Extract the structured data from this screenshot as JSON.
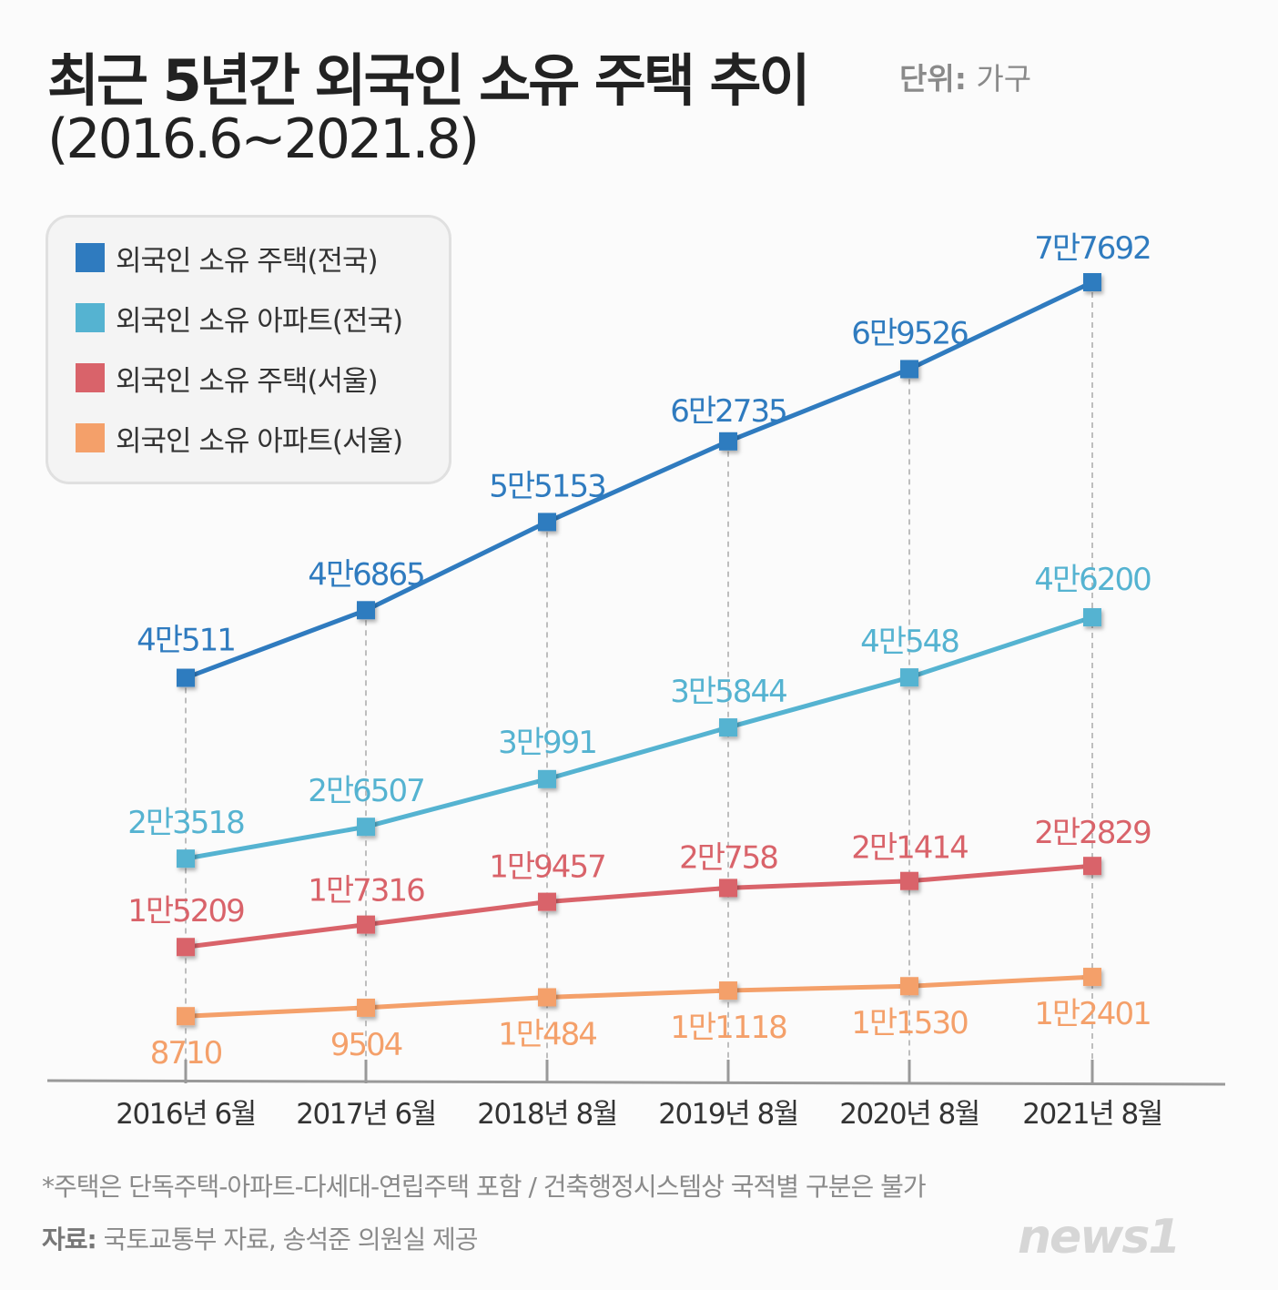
{
  "header": {
    "title_line1": "최근 5년간 외국인 소유 주택 추이",
    "title_line2": "(2016.6~2021.8)",
    "unit_label": "단위:",
    "unit_value": "가구"
  },
  "footer": {
    "footnote": "*주택은 단독주택-아파트-다세대-연립주택 포함 / 건축행정시스템상 국적별 구분은 불가",
    "source_label": "자료:",
    "source_value": "국토교통부 자료, 송석준 의원실 제공",
    "logo_text": "news1"
  },
  "chart_data": {
    "type": "line",
    "categories": [
      "2016년 6월",
      "2017년 6월",
      "2018년 8월",
      "2019년 8월",
      "2020년 8월",
      "2021년 8월"
    ],
    "grid": false,
    "legend_position": "top-left",
    "ylim": [
      0,
      80000
    ],
    "series": [
      {
        "name": "외국인 소유 주택(전국)",
        "color": "#2f7bbf",
        "values": [
          40511,
          46865,
          55153,
          62735,
          69526,
          77692
        ],
        "labels": [
          "4만511",
          "4만6865",
          "5만5153",
          "6만2735",
          "6만9526",
          "7만7692"
        ]
      },
      {
        "name": "외국인 소유 아파트(전국)",
        "color": "#55b3d1",
        "values": [
          23518,
          26507,
          30991,
          35844,
          40548,
          46200
        ],
        "labels": [
          "2만3518",
          "2만6507",
          "3만991",
          "3만5844",
          "4만548",
          "4만6200"
        ]
      },
      {
        "name": "외국인 소유 주택(서울)",
        "color": "#d9636a",
        "values": [
          15209,
          17316,
          19457,
          20758,
          21414,
          22829
        ],
        "labels": [
          "1만5209",
          "1만7316",
          "1만9457",
          "2만758",
          "2만1414",
          "2만2829"
        ]
      },
      {
        "name": "외국인 소유 아파트(서울)",
        "color": "#f4a06a",
        "values": [
          8710,
          9504,
          10484,
          11118,
          11530,
          12401
        ],
        "labels": [
          "8710",
          "9504",
          "1만484",
          "1만1118",
          "1만1530",
          "1만2401"
        ]
      }
    ]
  }
}
